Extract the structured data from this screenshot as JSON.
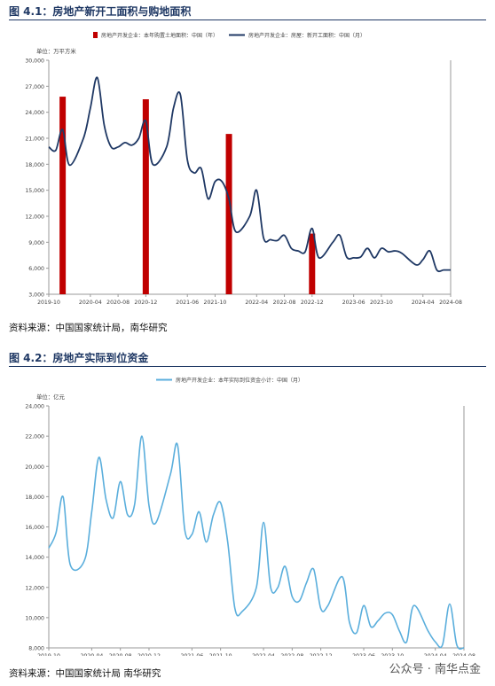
{
  "fig1": {
    "title": "图 4.1：房地产新开工面积与购地面积",
    "source": "资料来源：中国国家统计局，南华研究"
  },
  "fig2": {
    "title": "图 4.2：房地产实际到位资金",
    "source": "资料来源：中国国家统计局 南华研究"
  },
  "watermark": "公众号 · 南华点金",
  "colors": {
    "title": "#1f3864",
    "bar": "#c00000",
    "line1": "#1f3864",
    "line2": "#5aaedc"
  },
  "chart_data": [
    {
      "type": "bar+line",
      "unit_label": "单位：万平方米",
      "ylim": [
        3000,
        30000
      ],
      "y_ticks": [
        "3,000",
        "6,000",
        "9,000",
        "12,000",
        "15,000",
        "18,000",
        "21,000",
        "24,000",
        "27,000",
        "30,000"
      ],
      "x_range": [
        "2019-10",
        "2024-08"
      ],
      "x_ticks": [
        "2019-10",
        "2020-04",
        "2020-08",
        "2020-12",
        "2021-06",
        "2021-10",
        "2022-04",
        "2022-08",
        "2022-12",
        "2023-06",
        "2023-10",
        "2024-04",
        "2024-08"
      ],
      "legend": "top",
      "series": [
        {
          "name": "房地产开发企业：本年购置土地面积：中国（年）",
          "kind": "bar",
          "x": [
            "2019-12",
            "2020-12",
            "2021-12",
            "2022-12"
          ],
          "values": [
            25800,
            25500,
            21500,
            10000
          ]
        },
        {
          "name": "房地产开发企业：房屋：新开工面积：中国（月）",
          "kind": "line",
          "x": [
            "2019-10",
            "2019-11",
            "2019-12",
            "2020-01",
            "2020-03",
            "2020-04",
            "2020-05",
            "2020-06",
            "2020-07",
            "2020-08",
            "2020-09",
            "2020-10",
            "2020-11",
            "2020-12",
            "2021-01",
            "2021-03",
            "2021-04",
            "2021-05",
            "2021-06",
            "2021-07",
            "2021-08",
            "2021-09",
            "2021-10",
            "2021-11",
            "2021-12",
            "2022-01",
            "2022-03",
            "2022-04",
            "2022-05",
            "2022-06",
            "2022-07",
            "2022-08",
            "2022-09",
            "2022-10",
            "2022-11",
            "2022-12",
            "2023-01",
            "2023-03",
            "2023-04",
            "2023-05",
            "2023-06",
            "2023-07",
            "2023-08",
            "2023-09",
            "2023-10",
            "2023-11",
            "2023-12",
            "2024-01",
            "2024-03",
            "2024-04",
            "2024-05",
            "2024-06",
            "2024-07",
            "2024-08"
          ],
          "values": [
            20000,
            19600,
            22000,
            17900,
            21000,
            24500,
            28000,
            22500,
            20000,
            20000,
            20500,
            20200,
            21000,
            23000,
            18000,
            20000,
            24500,
            26000,
            18500,
            17000,
            17500,
            14000,
            16000,
            16000,
            14000,
            10200,
            12000,
            15000,
            9500,
            9300,
            9200,
            9800,
            8300,
            8000,
            7900,
            10600,
            7200,
            9000,
            9800,
            7300,
            7200,
            7300,
            8300,
            7200,
            8300,
            7900,
            8000,
            7700,
            6400,
            7000,
            8000,
            5800,
            5800,
            5800
          ]
        }
      ]
    },
    {
      "type": "line",
      "unit_label": "单位：亿元",
      "ylim": [
        8000,
        24000
      ],
      "y_ticks": [
        "8,000",
        "10,000",
        "12,000",
        "14,000",
        "16,000",
        "18,000",
        "20,000",
        "22,000",
        "24,000"
      ],
      "x_range": [
        "2019-10",
        "2024-08"
      ],
      "x_ticks": [
        "2019-10",
        "2020-04",
        "2020-08",
        "2020-12",
        "2021-06",
        "2021-10",
        "2022-04",
        "2022-08",
        "2022-12",
        "2023-06",
        "2023-10",
        "2024-04",
        "2024-08"
      ],
      "legend": "top",
      "series": [
        {
          "name": "房地产开发企业：本年实际到位资金小计：中国（月）",
          "x": [
            "2019-10",
            "2019-11",
            "2019-12",
            "2020-01",
            "2020-03",
            "2020-04",
            "2020-05",
            "2020-06",
            "2020-07",
            "2020-08",
            "2020-09",
            "2020-10",
            "2020-11",
            "2020-12",
            "2021-01",
            "2021-03",
            "2021-04",
            "2021-05",
            "2021-06",
            "2021-07",
            "2021-08",
            "2021-09",
            "2021-10",
            "2021-11",
            "2021-12",
            "2022-01",
            "2022-03",
            "2022-04",
            "2022-05",
            "2022-06",
            "2022-07",
            "2022-08",
            "2022-09",
            "2022-10",
            "2022-11",
            "2022-12",
            "2023-01",
            "2023-03",
            "2023-04",
            "2023-05",
            "2023-06",
            "2023-07",
            "2023-08",
            "2023-09",
            "2023-10",
            "2023-11",
            "2023-12",
            "2024-01",
            "2024-03",
            "2024-04",
            "2024-05",
            "2024-06",
            "2024-07",
            "2024-08"
          ],
          "values": [
            14600,
            15600,
            18000,
            13500,
            13800,
            17000,
            20600,
            17800,
            16600,
            19000,
            16800,
            17500,
            22000,
            17400,
            16300,
            19500,
            21400,
            15800,
            15500,
            17000,
            15000,
            16800,
            17600,
            15000,
            10600,
            10400,
            12000,
            16300,
            12000,
            12000,
            13400,
            11400,
            11100,
            12300,
            13200,
            10600,
            10800,
            12700,
            9700,
            9000,
            10800,
            9400,
            9800,
            10300,
            10200,
            9100,
            8400,
            10800,
            9100,
            8400,
            8200,
            10900,
            8200,
            8000
          ]
        }
      ]
    }
  ]
}
